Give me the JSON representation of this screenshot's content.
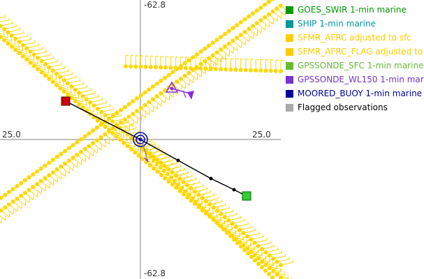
{
  "plot": {
    "axis_labels": {
      "top": "-62.8",
      "bottom": "-62.8",
      "left": "25.0",
      "right": "25.0"
    },
    "colors": {
      "sfmr": "#ffd700",
      "sfmr_dark": "#e0c000",
      "track": "#000000",
      "start_marker": "#cc0000",
      "end_marker": "#33cc33",
      "center": "#0000cc",
      "sonde": "#8a2be2",
      "axis": "#808080"
    }
  },
  "legend": {
    "items": [
      {
        "label": "GOES_SWIR 1-min marine",
        "color": "#009900"
      },
      {
        "label": "SHIP 1-min marine",
        "color": "#009999"
      },
      {
        "label": "SFMR_AFRC adjusted to sfc",
        "color": "#ffcc00"
      },
      {
        "label": "SFMR_AFRC_FLAG adjusted to",
        "color": "#ffcc00"
      },
      {
        "label": "GPSSONDE_SFC 1-min marine",
        "color": "#66bb33"
      },
      {
        "label": "GPSSONDE_WL150 1-min mar",
        "color": "#7733cc"
      },
      {
        "label": "MOORED_BUOY 1-min marine",
        "color": "#000099"
      },
      {
        "label": "Flagged observations",
        "color": "#aaaaaa"
      }
    ],
    "flagged_text_color": "#000000"
  }
}
